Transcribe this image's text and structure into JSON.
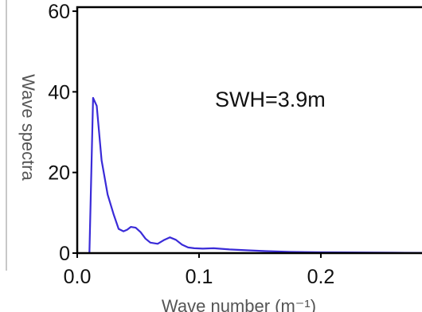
{
  "chart_data": {
    "type": "line",
    "xlabel": "Wave number (m⁻¹)",
    "ylabel": "Wave spectra",
    "xlim": [
      0.0,
      0.285
    ],
    "ylim": [
      0,
      61
    ],
    "xticks": [
      "0.0",
      "0.1",
      "0.2"
    ],
    "yticks": [
      "0",
      "20",
      "40",
      "60"
    ],
    "grid": false,
    "annotation": "SWH=3.9m",
    "line_color": "#3a2bd8",
    "series": [
      {
        "x": [
          0.01,
          0.013,
          0.016,
          0.02,
          0.025,
          0.03,
          0.034,
          0.038,
          0.041,
          0.044,
          0.048,
          0.052,
          0.056,
          0.06,
          0.066,
          0.071,
          0.076,
          0.081,
          0.086,
          0.091,
          0.096,
          0.103,
          0.112,
          0.125,
          0.14,
          0.155,
          0.175,
          0.2,
          0.23,
          0.26,
          0.285
        ],
        "values": [
          0,
          38.5,
          36.5,
          23,
          14.5,
          9.5,
          6.0,
          5.4,
          5.8,
          6.5,
          6.3,
          5.2,
          3.6,
          2.6,
          2.3,
          3.2,
          3.9,
          3.3,
          2.1,
          1.4,
          1.2,
          1.1,
          1.2,
          0.9,
          0.7,
          0.5,
          0.3,
          0.2,
          0.15,
          0.1,
          0.05
        ]
      }
    ]
  }
}
